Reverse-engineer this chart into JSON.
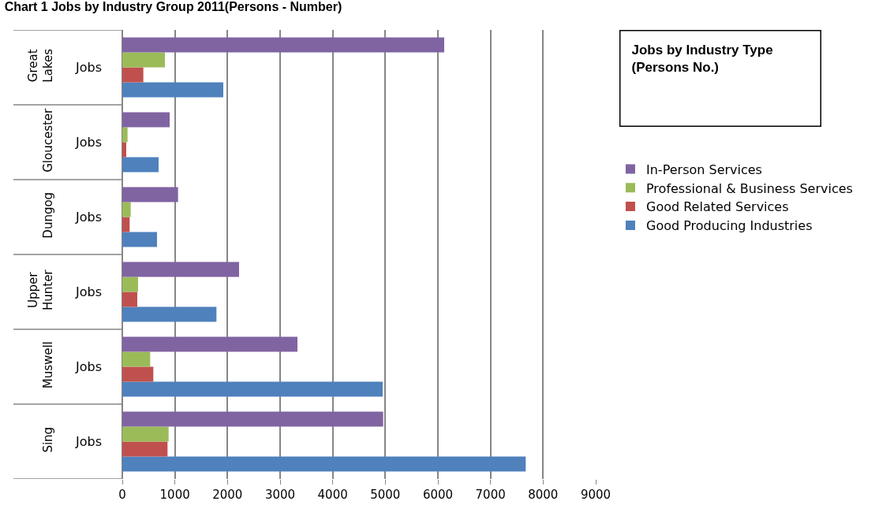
{
  "chart_data": {
    "type": "bar",
    "orientation": "horizontal",
    "title": "Chart 1 Jobs by Industry Group 2011(Persons - Number)",
    "subtitle": "Jobs by Industry Type (Persons No.)",
    "categories": [
      "Great Lakes",
      "Gloucester",
      "Dungog",
      "Upper Hunter",
      "Muswell",
      "Sing"
    ],
    "annotations": [
      "Jobs",
      "Jobs",
      "Jobs",
      "Jobs",
      "Jobs",
      "Jobs"
    ],
    "series": [
      {
        "name": "Good Producing Industries",
        "color": "#4f81bd",
        "values": [
          1920,
          690,
          660,
          1790,
          4950,
          7670
        ]
      },
      {
        "name": "Good Related Services",
        "color": "#c0504d",
        "values": [
          400,
          75,
          140,
          285,
          590,
          860
        ]
      },
      {
        "name": "Professional & Business Services",
        "color": "#9bbb59",
        "values": [
          810,
          100,
          160,
          300,
          530,
          880
        ]
      },
      {
        "name": "In-Person Services",
        "color": "#8064a2",
        "values": [
          6120,
          900,
          1060,
          2220,
          3330,
          4960
        ]
      }
    ],
    "xlim": [
      0,
      9000
    ],
    "xticks": [
      0,
      1000,
      2000,
      3000,
      4000,
      5000,
      6000,
      7000,
      8000,
      9000
    ],
    "grid": "x",
    "legend": "right"
  }
}
